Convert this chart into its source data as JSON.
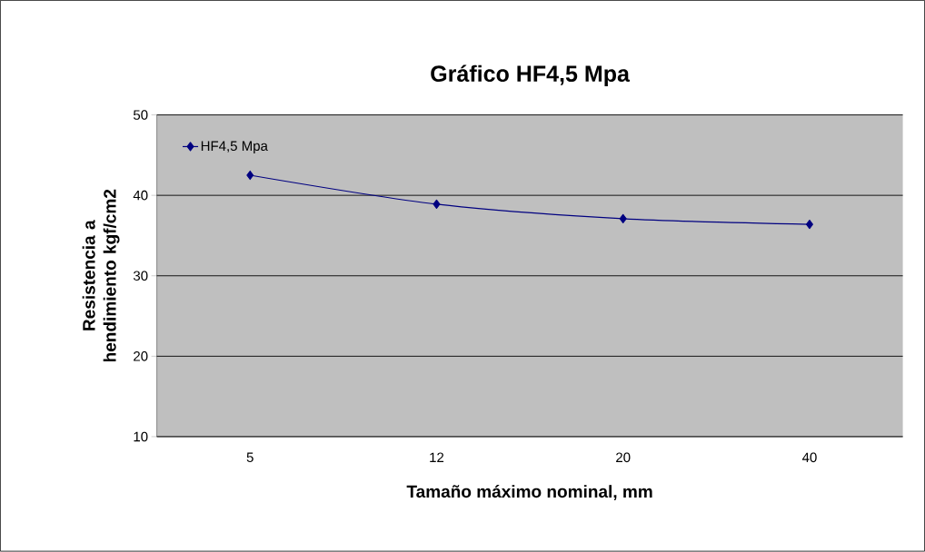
{
  "chart_data": {
    "type": "line",
    "title": "Gráfico HF4,5 Mpa",
    "xlabel": "Tamaño máximo nominal, mm",
    "ylabel": "Resistencia a hendimiento kgf/cm2",
    "categories": [
      "5",
      "12",
      "20",
      "40"
    ],
    "series": [
      {
        "name": "HF4,5 Mpa",
        "color": "#000080",
        "values": [
          42.5,
          38.9,
          37.1,
          36.4
        ]
      }
    ],
    "ylim": [
      10,
      50
    ],
    "yticks": [
      10,
      20,
      30,
      40,
      50
    ],
    "grid": "y",
    "legend": "top left",
    "marker": "diamond",
    "line_style": "solid"
  }
}
